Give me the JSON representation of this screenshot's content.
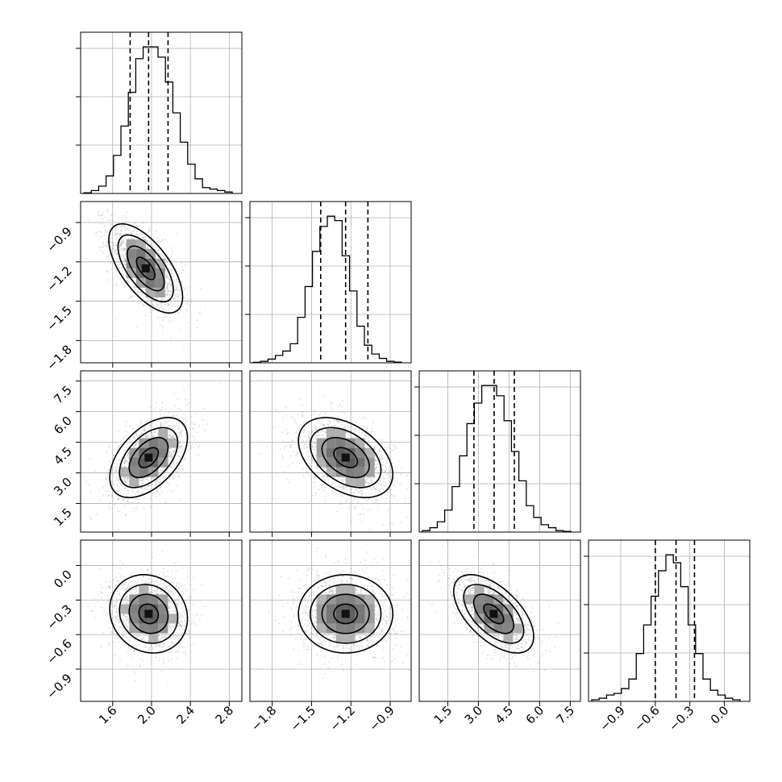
{
  "chart_data": {
    "type": "corner",
    "title": "",
    "n_params": 4,
    "params": [
      {
        "index": 0,
        "label": "",
        "range": [
          1.27,
          2.93
        ],
        "ticks": [
          1.6,
          2.0,
          2.4,
          2.8
        ],
        "tick_labels": [
          "1.6",
          "2.0",
          "2.4",
          "2.8"
        ],
        "quantiles": [
          1.78,
          1.97,
          2.17
        ]
      },
      {
        "index": 1,
        "label": "",
        "range": [
          -1.97,
          -0.74
        ],
        "ticks": [
          -1.8,
          -1.5,
          -1.2,
          -0.9
        ],
        "tick_labels": [
          "−1.8",
          "−1.5",
          "−1.2",
          "−0.9"
        ],
        "quantiles": [
          -1.43,
          -1.24,
          -1.07
        ]
      },
      {
        "index": 2,
        "label": "",
        "range": [
          0.1,
          8.0
        ],
        "ticks": [
          1.5,
          3.0,
          4.5,
          6.0,
          7.5
        ],
        "tick_labels": [
          "1.5",
          "3.0",
          "4.5",
          "6.0",
          "7.5"
        ],
        "quantiles": [
          2.78,
          3.77,
          4.76
        ]
      },
      {
        "index": 3,
        "label": "",
        "range": [
          -1.18,
          0.22
        ],
        "ticks": [
          -0.9,
          -0.6,
          -0.3,
          0.0
        ],
        "tick_labels": [
          "−0.9",
          "−0.6",
          "−0.3",
          "0.0"
        ],
        "quantiles": [
          -0.6,
          -0.42,
          -0.26
        ]
      }
    ],
    "histograms": [
      [
        0.005,
        0.02,
        0.05,
        0.12,
        0.26,
        0.46,
        0.69,
        0.92,
        1.0,
        1.0,
        0.93,
        0.76,
        0.55,
        0.35,
        0.2,
        0.1,
        0.04,
        0.03,
        0.02,
        0.01
      ],
      [
        0.003,
        0.01,
        0.025,
        0.05,
        0.08,
        0.13,
        0.31,
        0.52,
        0.76,
        0.93,
        1.0,
        0.97,
        0.73,
        0.49,
        0.25,
        0.12,
        0.06,
        0.03,
        0.01,
        0.005
      ],
      [
        0.01,
        0.03,
        0.07,
        0.15,
        0.31,
        0.52,
        0.74,
        0.88,
        1.0,
        1.0,
        0.93,
        0.76,
        0.55,
        0.35,
        0.18,
        0.1,
        0.05,
        0.03,
        0.01,
        0.005
      ],
      [
        0.01,
        0.02,
        0.04,
        0.05,
        0.08,
        0.14,
        0.3,
        0.48,
        0.66,
        0.82,
        0.92,
        0.87,
        0.72,
        0.48,
        0.3,
        0.14,
        0.07,
        0.04,
        0.02,
        0.01
      ]
    ],
    "pairs": [
      {
        "x": 0,
        "y": 1,
        "center": [
          1.94,
          -1.25
        ],
        "std": [
          0.19,
          0.17
        ],
        "rho": -0.64
      },
      {
        "x": 0,
        "y": 2,
        "center": [
          1.97,
          3.75
        ],
        "std": [
          0.2,
          0.98
        ],
        "rho": 0.5
      },
      {
        "x": 1,
        "y": 2,
        "center": [
          -1.24,
          3.75
        ],
        "std": [
          0.18,
          0.98
        ],
        "rho": -0.42
      },
      {
        "x": 0,
        "y": 3,
        "center": [
          1.97,
          -0.42
        ],
        "std": [
          0.2,
          0.17
        ],
        "rho": -0.12
      },
      {
        "x": 1,
        "y": 3,
        "center": [
          -1.24,
          -0.42
        ],
        "std": [
          0.18,
          0.17
        ],
        "rho": 0.0
      },
      {
        "x": 2,
        "y": 3,
        "center": [
          3.75,
          -0.42
        ],
        "std": [
          0.98,
          0.17
        ],
        "rho": -0.58
      }
    ],
    "contour_levels_sigma": [
      0.5,
      1.0,
      1.5,
      2.0
    ],
    "grid": true,
    "legend": "none",
    "colors": {
      "points": "#9e9e9e",
      "line": "#000000",
      "grid": "#b0b0b0",
      "bins": "#111111"
    }
  }
}
